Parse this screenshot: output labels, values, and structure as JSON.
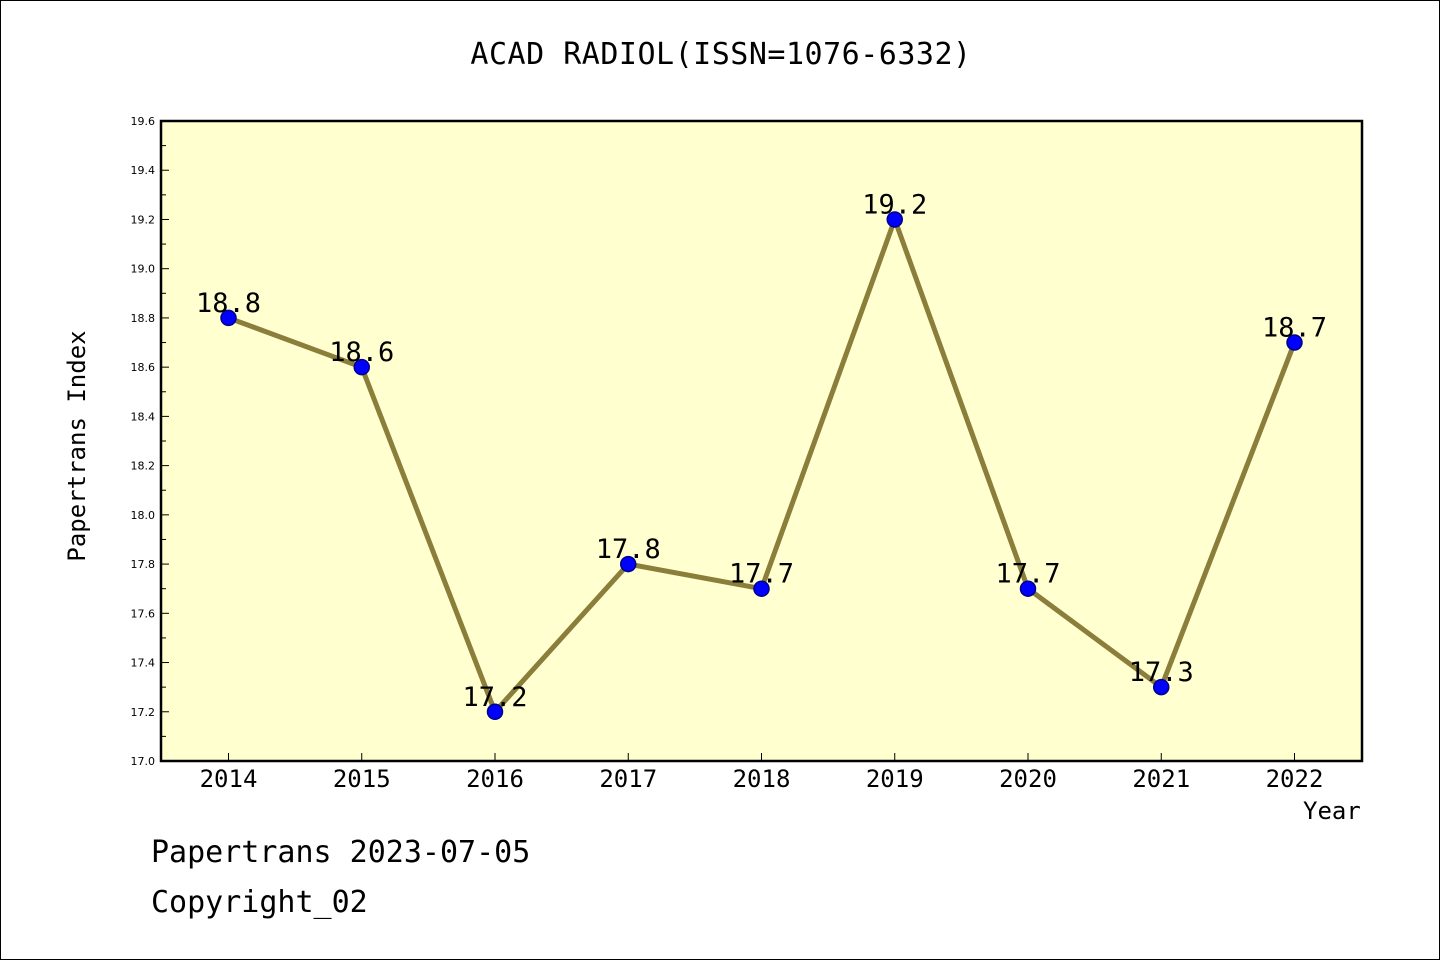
{
  "chart_data": {
    "type": "line",
    "title": "ACAD RADIOL(ISSN=1076-6332)",
    "xlabel": "Year",
    "ylabel": "Papertrans Index",
    "categories": [
      "2014",
      "2015",
      "2016",
      "2017",
      "2018",
      "2019",
      "2020",
      "2021",
      "2022"
    ],
    "values": [
      18.8,
      18.6,
      17.2,
      17.8,
      17.7,
      19.2,
      17.7,
      17.3,
      18.7
    ],
    "data_labels": [
      "18.8",
      "18.6",
      "17.2",
      "17.8",
      "17.7",
      "19.2",
      "17.7",
      "17.3",
      "18.7"
    ],
    "ylim": [
      17.0,
      19.6
    ],
    "yticks": [
      "17.0",
      "17.2",
      "17.4",
      "17.6",
      "17.8",
      "18.0",
      "18.2",
      "18.4",
      "18.6",
      "18.8",
      "19.0",
      "19.2",
      "19.4",
      "19.6"
    ],
    "grid": false,
    "legend": "none",
    "colors": {
      "plot_background": "#ffffd0",
      "line": "#8b7d3a",
      "marker_fill": "#0000ff",
      "marker_stroke": "#00008b"
    }
  },
  "footer": {
    "date_line": "Papertrans 2023-07-05",
    "copyright_line": "Copyright_02"
  }
}
